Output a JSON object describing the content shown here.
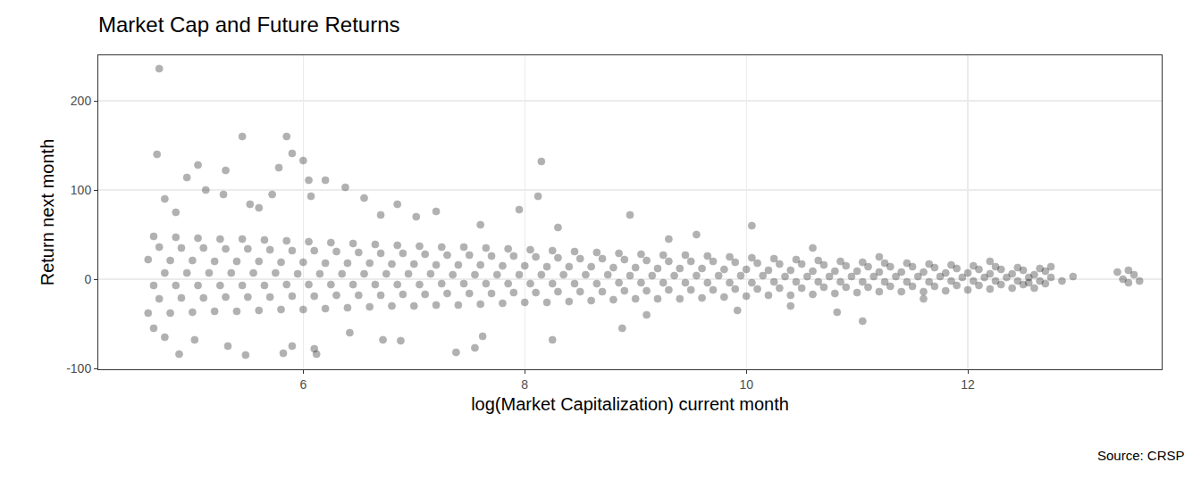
{
  "chart_data": {
    "type": "scatter",
    "title": "Market Cap and Future Returns",
    "x_label": "log(Market Capitalization) current month",
    "y_label": "Return next month",
    "caption": "Source: CRSP",
    "color": "#000000",
    "marker": "circle",
    "grid": true,
    "xlim": [
      4.15,
      13.75
    ],
    "ylim": [
      -101,
      251
    ],
    "xticks": [
      6,
      8,
      10,
      12
    ],
    "yticks": [
      -100,
      0,
      100,
      200
    ],
    "x": [
      4.6,
      4.7,
      4.65,
      4.75,
      4.6,
      4.7,
      4.65,
      4.8,
      4.9,
      4.85,
      4.95,
      4.8,
      4.9,
      4.85,
      5,
      5.1,
      5.05,
      5.15,
      5,
      5.1,
      5.05,
      5.2,
      5.3,
      5.25,
      5.35,
      5.2,
      5.3,
      5.25,
      5.4,
      5.5,
      5.45,
      5.55,
      5.4,
      5.5,
      5.45,
      5.6,
      5.7,
      5.65,
      5.75,
      5.6,
      5.7,
      5.65,
      5.8,
      5.9,
      5.85,
      5.95,
      5.8,
      5.9,
      5.85,
      6,
      6.1,
      6.05,
      6.15,
      6,
      6.1,
      6.05,
      6.2,
      6.3,
      6.25,
      6.35,
      6.2,
      6.3,
      6.25,
      6.4,
      6.5,
      6.45,
      6.55,
      6.4,
      6.5,
      6.45,
      6.6,
      6.7,
      6.65,
      6.75,
      6.6,
      6.7,
      6.65,
      6.8,
      6.9,
      6.85,
      6.95,
      6.8,
      6.9,
      6.85,
      7,
      7.1,
      7.05,
      7.15,
      7,
      7.1,
      7.05,
      7.2,
      7.3,
      7.25,
      7.35,
      7.2,
      7.3,
      7.25,
      7.4,
      7.5,
      7.45,
      7.55,
      7.4,
      7.5,
      7.45,
      7.6,
      7.7,
      7.65,
      7.75,
      7.6,
      7.7,
      7.65,
      7.8,
      7.9,
      7.85,
      7.95,
      7.8,
      7.9,
      7.85,
      8,
      8.1,
      8.05,
      8.15,
      8,
      8.1,
      8.05,
      8.2,
      8.3,
      8.25,
      8.35,
      8.2,
      8.3,
      8.25,
      8.4,
      8.5,
      8.45,
      8.55,
      8.4,
      8.5,
      8.45,
      8.6,
      8.7,
      8.65,
      8.75,
      8.6,
      8.7,
      8.65,
      8.8,
      8.9,
      8.85,
      8.95,
      8.8,
      8.9,
      8.85,
      9,
      9.1,
      9.05,
      9.15,
      9,
      9.1,
      9.05,
      9.2,
      9.3,
      9.25,
      9.35,
      9.2,
      9.3,
      9.25,
      9.4,
      9.5,
      9.45,
      9.55,
      9.4,
      9.5,
      9.45,
      9.6,
      9.7,
      9.65,
      9.75,
      9.6,
      9.7,
      9.65,
      9.8,
      9.9,
      9.85,
      9.95,
      9.8,
      9.9,
      9.85,
      10,
      10.1,
      10.05,
      10.15,
      10,
      10.1,
      10.05,
      10.2,
      10.3,
      10.25,
      10.35,
      10.2,
      10.3,
      10.25,
      10.4,
      10.5,
      10.45,
      10.55,
      10.4,
      10.5,
      10.45,
      10.6,
      10.7,
      10.65,
      10.75,
      10.6,
      10.7,
      10.65,
      10.8,
      10.9,
      10.85,
      10.95,
      10.8,
      10.9,
      10.85,
      11,
      11.1,
      11.05,
      11.15,
      11,
      11.1,
      11.05,
      11.2,
      11.3,
      11.25,
      11.35,
      11.2,
      11.3,
      11.25,
      11.4,
      11.5,
      11.45,
      11.55,
      11.4,
      11.5,
      11.45,
      11.6,
      11.7,
      11.65,
      11.75,
      11.6,
      11.7,
      11.65,
      11.8,
      11.9,
      11.85,
      11.95,
      11.8,
      11.9,
      11.85,
      12,
      12.1,
      12.05,
      12.15,
      12,
      12.1,
      12.05,
      12.2,
      12.3,
      12.25,
      12.35,
      12.2,
      12.3,
      12.25,
      12.4,
      12.5,
      12.45,
      12.55,
      12.4,
      12.5,
      12.45,
      12.6,
      12.7,
      12.65,
      12.75,
      12.6,
      12.7,
      12.65,
      4.7,
      4.68,
      5.45,
      5.85,
      5.9,
      5.05,
      5.3,
      6,
      8.15,
      6.05,
      6.2,
      4.95,
      8.12,
      6.07,
      5.72,
      5.52,
      4.75,
      5.28,
      6.55,
      6.85,
      7.6,
      8.95,
      10.05,
      9.55,
      7.2,
      5.12,
      6.38,
      5.78,
      7.02,
      7.95,
      8.3,
      9.3,
      5.6,
      6.7,
      4.85,
      13.35,
      13.45,
      13.5,
      13.4,
      13.45,
      13.55,
      12.95,
      12.85,
      12.55,
      12.75,
      4.88,
      5.48,
      5.82,
      6.12,
      7.38,
      8.25,
      8.88,
      11.05,
      10.82,
      9.92,
      4.75,
      5.9,
      6.72,
      7.62,
      6.1,
      5.32,
      5.02,
      6.88,
      6.42,
      4.65,
      7.55,
      9.1,
      10.4,
      11.6,
      12.2,
      11.2,
      10.6
    ],
    "values": [
      -38,
      -22,
      -7,
      7,
      22,
      36,
      48,
      -38,
      -21,
      -7,
      7,
      21,
      35,
      47,
      -37,
      -21,
      -7,
      7,
      21,
      35,
      46,
      -36,
      -20,
      -7,
      7,
      20,
      34,
      45,
      -36,
      -20,
      -7,
      7,
      20,
      34,
      45,
      -35,
      -20,
      -7,
      7,
      20,
      33,
      44,
      -34,
      -19,
      -6,
      6,
      19,
      32,
      43,
      -34,
      -19,
      -6,
      6,
      19,
      32,
      42,
      -33,
      -18,
      -6,
      6,
      18,
      31,
      41,
      -32,
      -18,
      -6,
      6,
      18,
      30,
      40,
      -31,
      -18,
      -6,
      6,
      18,
      29,
      39,
      -30,
      -17,
      -6,
      6,
      17,
      29,
      38,
      -30,
      -17,
      -6,
      6,
      17,
      28,
      37,
      -29,
      -16,
      -5,
      5,
      16,
      27,
      36,
      -29,
      -16,
      -5,
      5,
      16,
      27,
      36,
      -28,
      -16,
      -5,
      5,
      16,
      26,
      35,
      -27,
      -15,
      -5,
      5,
      15,
      26,
      34,
      -26,
      -15,
      -5,
      5,
      15,
      25,
      33,
      -26,
      -14,
      -5,
      5,
      14,
      24,
      32,
      -25,
      -14,
      -5,
      5,
      14,
      23,
      31,
      -24,
      -14,
      -5,
      5,
      14,
      23,
      30,
      -23,
      -13,
      -4,
      4,
      13,
      22,
      29,
      -22,
      -13,
      -4,
      4,
      13,
      21,
      28,
      -22,
      -12,
      -4,
      4,
      12,
      20,
      27,
      -22,
      -12,
      -4,
      4,
      12,
      20,
      27,
      -21,
      -12,
      -4,
      4,
      12,
      20,
      26,
      -20,
      -11,
      -4,
      4,
      11,
      19,
      25,
      -19,
      -11,
      -4,
      4,
      11,
      18,
      24,
      -18,
      -10,
      -3,
      3,
      10,
      17,
      23,
      -18,
      -10,
      -3,
      3,
      10,
      17,
      22,
      -17,
      -9,
      -3,
      3,
      9,
      16,
      21,
      -16,
      -9,
      -3,
      3,
      9,
      15,
      20,
      -15,
      -9,
      -3,
      3,
      9,
      14,
      19,
      -14,
      -8,
      -3,
      3,
      8,
      14,
      18,
      -14,
      -8,
      -3,
      3,
      8,
      14,
      18,
      -14,
      -8,
      -3,
      3,
      8,
      13,
      17,
      -13,
      -7,
      -2,
      2,
      7,
      12,
      16,
      -12,
      -7,
      -2,
      2,
      7,
      11,
      15,
      -11,
      -6,
      -2,
      2,
      6,
      11,
      14,
      -10,
      -6,
      -2,
      2,
      6,
      10,
      13,
      -10,
      -5,
      -2,
      2,
      5,
      9,
      12,
      236,
      140,
      160,
      160,
      141,
      128,
      122,
      133,
      132,
      111,
      111,
      114,
      93,
      93,
      95,
      84,
      90,
      95,
      91,
      84,
      61,
      72,
      60,
      50,
      76,
      100,
      103,
      125,
      70,
      78,
      58,
      45,
      80,
      72,
      75,
      8,
      10,
      5,
      0,
      -4,
      -2,
      3,
      -2,
      -4,
      14,
      -84,
      -85,
      -83,
      -84,
      -82,
      -68,
      -55,
      -47,
      -37,
      -35,
      -65,
      -75,
      -68,
      -64,
      -78,
      -75,
      -68,
      -69,
      -60,
      -55,
      -77,
      -40,
      -30,
      -22,
      20,
      25,
      35
    ]
  }
}
